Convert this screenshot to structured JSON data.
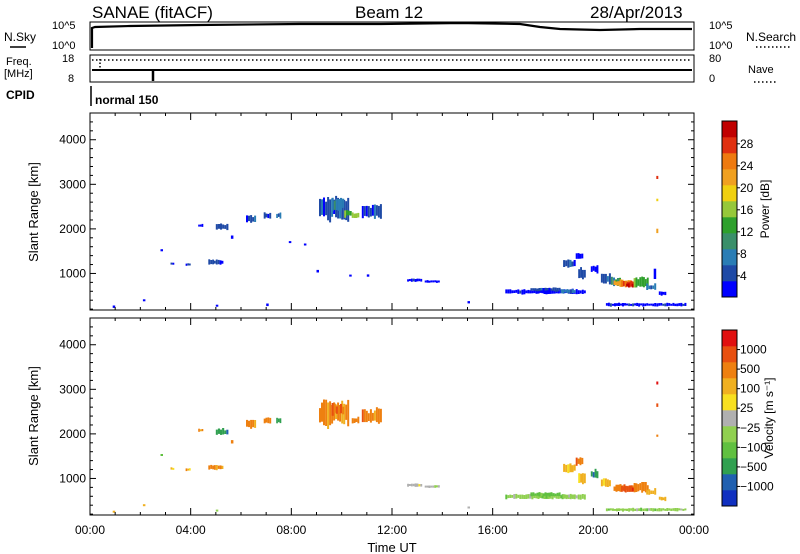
{
  "header": {
    "station": "SANAE (fitACF)",
    "beam": "Beam 12",
    "date": "28/Apr/2013"
  },
  "top_panels": {
    "nsky_label": "N.Sky",
    "nsky_ticks": [
      "10^5",
      "10^0"
    ],
    "nsearch_label": "N.Search",
    "nsearch_ticks": [
      "10^5",
      "10^0"
    ],
    "freq_label": "Freq.",
    "freq_unit": "[MHz]",
    "freq_ticks": [
      "18",
      "8"
    ],
    "nave_label": "Nave",
    "nave_ticks": [
      "80",
      "0"
    ],
    "cpid_label": "CPID",
    "cpid_value": "normal 150"
  },
  "chart_data": [
    {
      "type": "heatmap",
      "panel": "power",
      "ylabel": "Slant Range [km]",
      "xlabel": "",
      "x_ticks": [
        "00:00",
        "04:00",
        "08:00",
        "12:00",
        "16:00",
        "20:00",
        "00:00"
      ],
      "y_ticks": [
        1000,
        2000,
        3000,
        4000
      ],
      "xlim_hours": [
        0,
        24
      ],
      "ylim_km": [
        180,
        4600
      ],
      "colorbar": {
        "label": "Power [dB]",
        "ticks": [
          "4",
          "8",
          "12",
          "16",
          "20",
          "24",
          "28"
        ],
        "colors": [
          "#0000ff",
          "#1f4aa6",
          "#2a7db5",
          "#3a8f6a",
          "#2ea02c",
          "#96c83a",
          "#f0d010",
          "#f0a020",
          "#ee7a10",
          "#e03010",
          "#c00000"
        ]
      },
      "patches": [
        {
          "t": 2.8,
          "r": 1520,
          "w": 0.1,
          "h": 60,
          "c": 0
        },
        {
          "t": 3.2,
          "r": 1220,
          "w": 0.15,
          "h": 60,
          "c": 0
        },
        {
          "t": 3.8,
          "r": 1200,
          "w": 0.2,
          "h": 60,
          "c": 0
        },
        {
          "t": 4.3,
          "r": 2080,
          "w": 0.2,
          "h": 80,
          "c": 0
        },
        {
          "t": 4.7,
          "r": 1250,
          "w": 0.6,
          "h": 120,
          "c": 1
        },
        {
          "t": 5.0,
          "r": 2050,
          "w": 0.5,
          "h": 150,
          "c": 1
        },
        {
          "t": 5.6,
          "r": 1820,
          "w": 0.1,
          "h": 80,
          "c": 0
        },
        {
          "t": 6.2,
          "r": 2230,
          "w": 0.4,
          "h": 200,
          "c": 1
        },
        {
          "t": 6.9,
          "r": 2300,
          "w": 0.3,
          "h": 150,
          "c": 1
        },
        {
          "t": 7.4,
          "r": 2300,
          "w": 0.2,
          "h": 150,
          "c": 2
        },
        {
          "t": 7.9,
          "r": 1700,
          "w": 0.1,
          "h": 60,
          "c": 0
        },
        {
          "t": 8.5,
          "r": 1650,
          "w": 0.1,
          "h": 60,
          "c": 0
        },
        {
          "t": 9.1,
          "r": 2450,
          "w": 1.2,
          "h": 600,
          "c": 1
        },
        {
          "t": 9.6,
          "r": 2550,
          "w": 0.5,
          "h": 300,
          "c": 2
        },
        {
          "t": 10.1,
          "r": 2350,
          "w": 0.3,
          "h": 200,
          "c": 4
        },
        {
          "t": 10.4,
          "r": 2300,
          "w": 0.3,
          "h": 150,
          "c": 5
        },
        {
          "t": 10.8,
          "r": 2400,
          "w": 0.8,
          "h": 350,
          "c": 1
        },
        {
          "t": 9.0,
          "r": 1050,
          "w": 0.1,
          "h": 60,
          "c": 0
        },
        {
          "t": 10.3,
          "r": 950,
          "w": 0.1,
          "h": 60,
          "c": 0
        },
        {
          "t": 11.0,
          "r": 950,
          "w": 0.1,
          "h": 60,
          "c": 0
        },
        {
          "t": 12.6,
          "r": 850,
          "w": 0.6,
          "h": 80,
          "c": 0
        },
        {
          "t": 13.3,
          "r": 820,
          "w": 0.6,
          "h": 60,
          "c": 0
        },
        {
          "t": 16.5,
          "r": 590,
          "w": 3.2,
          "h": 120,
          "c": 0
        },
        {
          "t": 17.5,
          "r": 640,
          "w": 1.2,
          "h": 100,
          "c": 1
        },
        {
          "t": 18.7,
          "r": 600,
          "w": 0.6,
          "h": 100,
          "c": 2
        },
        {
          "t": 18.8,
          "r": 1230,
          "w": 0.5,
          "h": 200,
          "c": 1
        },
        {
          "t": 19.3,
          "r": 1380,
          "w": 0.3,
          "h": 200,
          "c": 0
        },
        {
          "t": 19.4,
          "r": 1000,
          "w": 0.3,
          "h": 300,
          "c": 1
        },
        {
          "t": 19.9,
          "r": 1100,
          "w": 0.3,
          "h": 200,
          "c": 0
        },
        {
          "t": 20.3,
          "r": 900,
          "w": 0.4,
          "h": 250,
          "c": 1
        },
        {
          "t": 20.7,
          "r": 820,
          "w": 0.4,
          "h": 200,
          "c": 3
        },
        {
          "t": 20.8,
          "r": 780,
          "w": 0.8,
          "h": 180,
          "c": 7
        },
        {
          "t": 21.1,
          "r": 760,
          "w": 0.6,
          "h": 150,
          "c": 9
        },
        {
          "t": 21.3,
          "r": 730,
          "w": 0.3,
          "h": 100,
          "c": 10
        },
        {
          "t": 21.6,
          "r": 800,
          "w": 0.6,
          "h": 250,
          "c": 4
        },
        {
          "t": 22.1,
          "r": 700,
          "w": 0.4,
          "h": 150,
          "c": 2
        },
        {
          "t": 22.6,
          "r": 550,
          "w": 0.3,
          "h": 120,
          "c": 0
        },
        {
          "t": 22.4,
          "r": 1000,
          "w": 0.1,
          "h": 300,
          "c": 0
        },
        {
          "t": 22.5,
          "r": 3150,
          "w": 0.08,
          "h": 100,
          "c": 9
        },
        {
          "t": 22.5,
          "r": 2650,
          "w": 0.08,
          "h": 100,
          "c": 7
        },
        {
          "t": 22.5,
          "r": 1950,
          "w": 0.08,
          "h": 100,
          "c": 7
        },
        {
          "t": 20.5,
          "r": 300,
          "w": 3.2,
          "h": 80,
          "c": 0
        },
        {
          "t": 0.9,
          "r": 250,
          "w": 0.1,
          "h": 60,
          "c": 0
        },
        {
          "t": 2.1,
          "r": 400,
          "w": 0.1,
          "h": 60,
          "c": 0
        },
        {
          "t": 5.0,
          "r": 280,
          "w": 0.1,
          "h": 60,
          "c": 0
        },
        {
          "t": 7.0,
          "r": 300,
          "w": 0.1,
          "h": 60,
          "c": 0
        },
        {
          "t": 15.0,
          "r": 350,
          "w": 0.1,
          "h": 60,
          "c": 0
        }
      ]
    },
    {
      "type": "heatmap",
      "panel": "velocity",
      "ylabel": "Slant Range [km]",
      "xlabel": "Time UT",
      "x_ticks": [
        "00:00",
        "04:00",
        "08:00",
        "12:00",
        "16:00",
        "20:00",
        "00:00"
      ],
      "y_ticks": [
        1000,
        2000,
        3000,
        4000
      ],
      "xlim_hours": [
        0,
        24
      ],
      "ylim_km": [
        180,
        4600
      ],
      "colorbar": {
        "label": "Velocity [m s⁻¹]",
        "ticks": [
          "1000",
          "500",
          "100",
          "25",
          "−25",
          "−100",
          "−500",
          "−1000"
        ],
        "colors": [
          "#1030c0",
          "#2060b0",
          "#30a050",
          "#60c040",
          "#90d050",
          "#b0b0b0",
          "#f8e020",
          "#f0b020",
          "#ee8010",
          "#e85010",
          "#e01010"
        ]
      },
      "patches": [
        {
          "t": 2.8,
          "r": 1520,
          "w": 0.1,
          "h": 60,
          "c": 3
        },
        {
          "t": 3.2,
          "r": 1220,
          "w": 0.15,
          "h": 60,
          "c": 7
        },
        {
          "t": 3.8,
          "r": 1200,
          "w": 0.2,
          "h": 60,
          "c": 7
        },
        {
          "t": 4.3,
          "r": 2080,
          "w": 0.2,
          "h": 80,
          "c": 8
        },
        {
          "t": 4.7,
          "r": 1250,
          "w": 0.6,
          "h": 120,
          "c": 8
        },
        {
          "t": 5.0,
          "r": 2050,
          "w": 0.5,
          "h": 150,
          "c": 2
        },
        {
          "t": 5.6,
          "r": 1820,
          "w": 0.1,
          "h": 80,
          "c": 8
        },
        {
          "t": 6.2,
          "r": 2230,
          "w": 0.4,
          "h": 200,
          "c": 8
        },
        {
          "t": 6.9,
          "r": 2300,
          "w": 0.3,
          "h": 150,
          "c": 8
        },
        {
          "t": 7.4,
          "r": 2300,
          "w": 0.2,
          "h": 150,
          "c": 2
        },
        {
          "t": 9.1,
          "r": 2450,
          "w": 1.2,
          "h": 600,
          "c": 8
        },
        {
          "t": 9.6,
          "r": 2550,
          "w": 0.5,
          "h": 300,
          "c": 9
        },
        {
          "t": 10.4,
          "r": 2300,
          "w": 0.3,
          "h": 150,
          "c": 8
        },
        {
          "t": 10.8,
          "r": 2400,
          "w": 0.8,
          "h": 350,
          "c": 8
        },
        {
          "t": 12.6,
          "r": 850,
          "w": 0.6,
          "h": 80,
          "c": 5
        },
        {
          "t": 13.3,
          "r": 820,
          "w": 0.6,
          "h": 60,
          "c": 5
        },
        {
          "t": 16.5,
          "r": 590,
          "w": 3.2,
          "h": 120,
          "c": 4
        },
        {
          "t": 17.5,
          "r": 640,
          "w": 1.2,
          "h": 100,
          "c": 3
        },
        {
          "t": 18.7,
          "r": 600,
          "w": 0.6,
          "h": 100,
          "c": 4
        },
        {
          "t": 18.8,
          "r": 1230,
          "w": 0.5,
          "h": 200,
          "c": 7
        },
        {
          "t": 19.3,
          "r": 1380,
          "w": 0.3,
          "h": 200,
          "c": 8
        },
        {
          "t": 19.4,
          "r": 1000,
          "w": 0.3,
          "h": 300,
          "c": 7
        },
        {
          "t": 19.9,
          "r": 1100,
          "w": 0.3,
          "h": 200,
          "c": 2
        },
        {
          "t": 20.3,
          "r": 900,
          "w": 0.4,
          "h": 250,
          "c": 7
        },
        {
          "t": 20.8,
          "r": 780,
          "w": 0.8,
          "h": 180,
          "c": 8
        },
        {
          "t": 21.1,
          "r": 760,
          "w": 0.6,
          "h": 150,
          "c": 9
        },
        {
          "t": 21.6,
          "r": 800,
          "w": 0.6,
          "h": 250,
          "c": 8
        },
        {
          "t": 22.1,
          "r": 700,
          "w": 0.4,
          "h": 150,
          "c": 7
        },
        {
          "t": 22.5,
          "r": 3150,
          "w": 0.08,
          "h": 100,
          "c": 10
        },
        {
          "t": 22.5,
          "r": 2650,
          "w": 0.08,
          "h": 100,
          "c": 9
        },
        {
          "t": 22.5,
          "r": 1950,
          "w": 0.08,
          "h": 100,
          "c": 8
        },
        {
          "t": 22.6,
          "r": 550,
          "w": 0.3,
          "h": 120,
          "c": 7
        },
        {
          "t": 20.5,
          "r": 300,
          "w": 3.2,
          "h": 80,
          "c": 4
        },
        {
          "t": 0.9,
          "r": 250,
          "w": 0.1,
          "h": 60,
          "c": 7
        },
        {
          "t": 2.1,
          "r": 400,
          "w": 0.1,
          "h": 60,
          "c": 7
        },
        {
          "t": 5.0,
          "r": 280,
          "w": 0.1,
          "h": 60,
          "c": 4
        },
        {
          "t": 15.0,
          "r": 350,
          "w": 0.1,
          "h": 60,
          "c": 5
        }
      ]
    }
  ]
}
